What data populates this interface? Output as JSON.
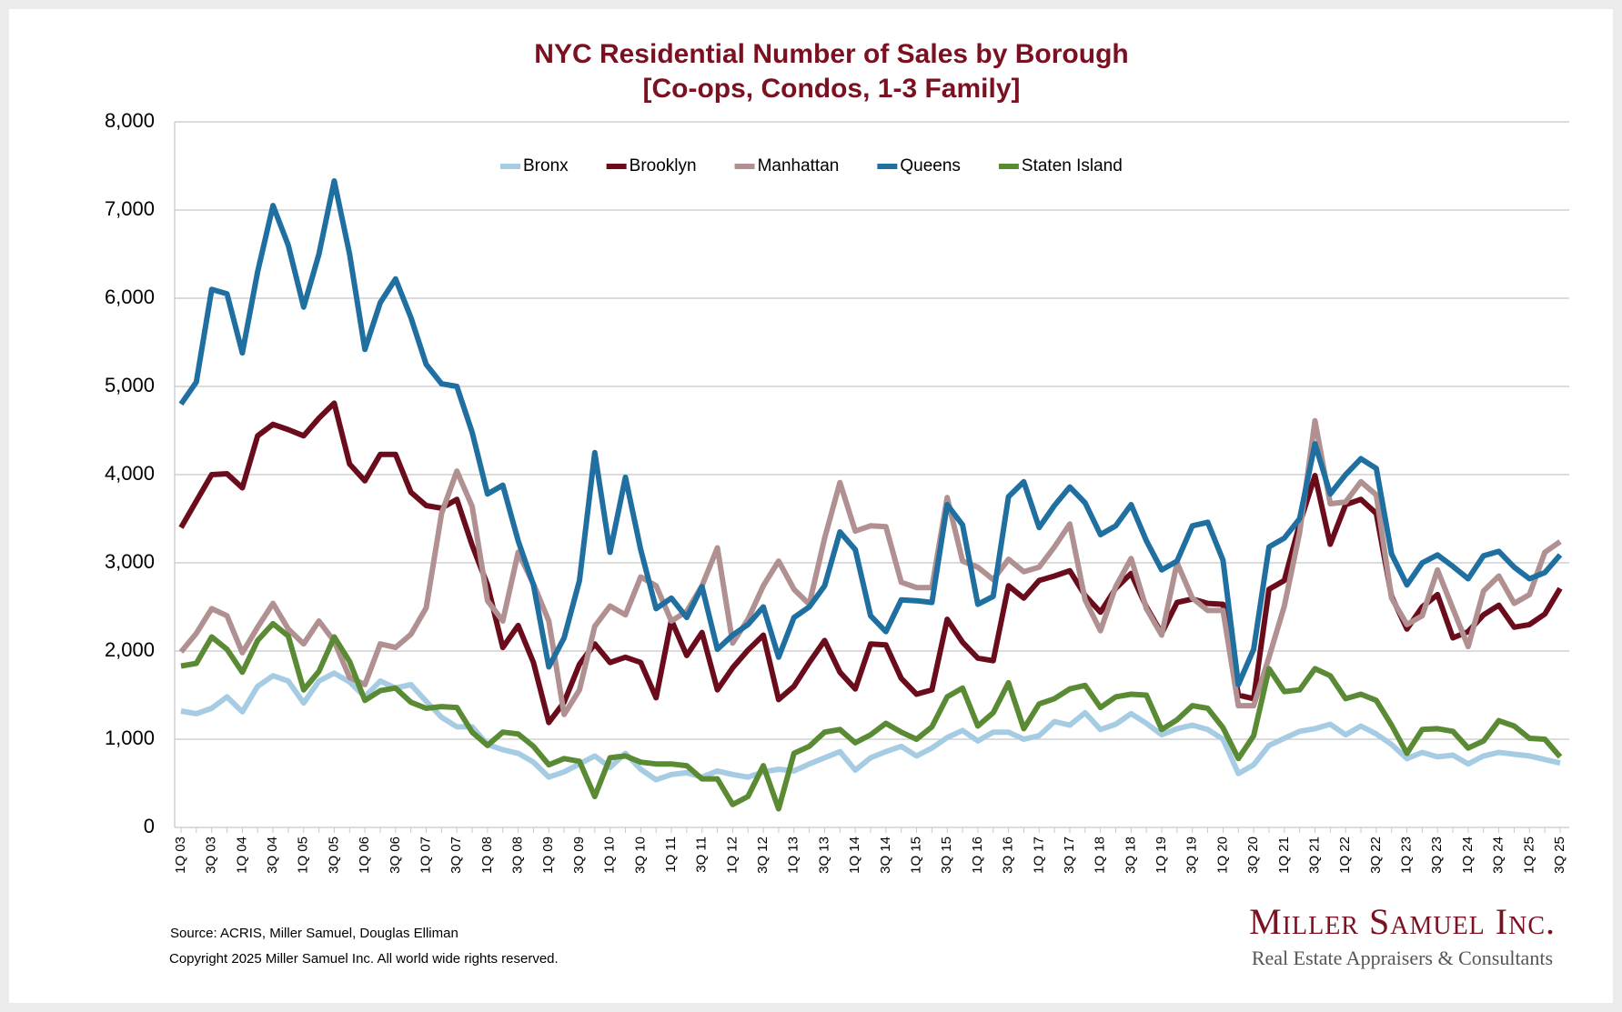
{
  "chart_data": {
    "type": "line",
    "title": "NYC Residential Number of Sales by Borough",
    "subtitle": "[Co-ops, Condos, 1-3 Family]",
    "categories": [
      "1Q 03",
      null,
      "3Q 03",
      null,
      "1Q 04",
      null,
      "3Q 04",
      null,
      "1Q 05",
      null,
      "3Q 05",
      null,
      "1Q 06",
      null,
      "3Q 06",
      null,
      "1Q 07",
      null,
      "3Q 07",
      null,
      "1Q 08",
      null,
      "3Q 08",
      null,
      "1Q 09",
      null,
      "3Q 09",
      null,
      "1Q 10",
      null,
      "3Q 10",
      null,
      "1Q 11",
      null,
      "3Q 11",
      null,
      "1Q 12",
      null,
      "3Q 12",
      null,
      "1Q 13",
      null,
      "3Q 13",
      null,
      "1Q 14",
      null,
      "3Q 14",
      null,
      "1Q 15",
      null,
      "3Q 15",
      null,
      "1Q 16",
      null,
      "3Q 16",
      null,
      "1Q 17",
      null,
      "3Q 17",
      null,
      "1Q 18",
      null,
      "3Q 18",
      null,
      "1Q 19",
      null,
      "3Q 19",
      null,
      "1Q 20",
      null,
      "3Q 20",
      null,
      "1Q 21",
      null,
      "3Q 21",
      null,
      "1Q 22",
      null,
      "3Q 22",
      null,
      "1Q 23",
      null,
      "3Q 23",
      null,
      "1Q 24",
      null,
      "3Q 24",
      null,
      "1Q 25",
      null,
      "3Q 25"
    ],
    "series": [
      {
        "name": "Bronx",
        "color": "#a6cce3",
        "values": [
          1320,
          1290,
          1350,
          1480,
          1310,
          1600,
          1720,
          1660,
          1410,
          1660,
          1750,
          1650,
          1480,
          1660,
          1580,
          1620,
          1430,
          1250,
          1140,
          1140,
          940,
          880,
          840,
          740,
          570,
          630,
          720,
          810,
          680,
          840,
          660,
          540,
          600,
          620,
          570,
          640,
          600,
          570,
          630,
          660,
          640,
          720,
          790,
          860,
          650,
          790,
          860,
          920,
          810,
          900,
          1020,
          1100,
          980,
          1080,
          1080,
          1000,
          1040,
          1200,
          1160,
          1300,
          1110,
          1170,
          1290,
          1180,
          1050,
          1120,
          1160,
          1110,
          1000,
          610,
          710,
          930,
          1010,
          1090,
          1120,
          1170,
          1050,
          1150,
          1060,
          940,
          780,
          850,
          800,
          820,
          720,
          810,
          850,
          830,
          810,
          770,
          730
        ]
      },
      {
        "name": "Brooklyn",
        "color": "#6b0c1c",
        "values": [
          3400,
          3700,
          4000,
          4010,
          3850,
          4440,
          4570,
          4510,
          4440,
          4640,
          4810,
          4120,
          3930,
          4230,
          4230,
          3800,
          3650,
          3620,
          3720,
          3200,
          2750,
          2040,
          2290,
          1870,
          1190,
          1420,
          1850,
          2080,
          1870,
          1930,
          1870,
          1470,
          2350,
          1950,
          2210,
          1560,
          1810,
          2010,
          2180,
          1450,
          1600,
          1870,
          2120,
          1760,
          1570,
          2080,
          2070,
          1690,
          1510,
          1560,
          2360,
          2100,
          1920,
          1890,
          2740,
          2600,
          2800,
          2850,
          2910,
          2630,
          2440,
          2710,
          2880,
          2500,
          2200,
          2550,
          2590,
          2540,
          2530,
          1500,
          1460,
          2700,
          2800,
          3440,
          3990,
          3210,
          3660,
          3720,
          3560,
          2620,
          2250,
          2500,
          2640,
          2150,
          2220,
          2410,
          2520,
          2270,
          2300,
          2420,
          2710
        ]
      },
      {
        "name": "Manhattan",
        "color": "#b09090",
        "values": [
          1990,
          2200,
          2480,
          2400,
          1980,
          2270,
          2540,
          2250,
          2080,
          2340,
          2110,
          1700,
          1620,
          2080,
          2040,
          2190,
          2490,
          3560,
          4040,
          3640,
          2570,
          2340,
          3120,
          2760,
          2340,
          1280,
          1560,
          2280,
          2510,
          2410,
          2840,
          2740,
          2340,
          2450,
          2740,
          3170,
          2090,
          2360,
          2740,
          3020,
          2700,
          2530,
          3280,
          3910,
          3360,
          3420,
          3410,
          2780,
          2720,
          2720,
          3740,
          3020,
          2950,
          2810,
          3040,
          2900,
          2950,
          3180,
          3440,
          2580,
          2230,
          2730,
          3050,
          2480,
          2180,
          3000,
          2600,
          2460,
          2460,
          1380,
          1380,
          1930,
          2510,
          3340,
          4610,
          3670,
          3690,
          3920,
          3770,
          2600,
          2300,
          2400,
          2920,
          2480,
          2050,
          2680,
          2850,
          2540,
          2640,
          3120,
          3240
        ]
      },
      {
        "name": "Queens",
        "color": "#1f6fa0",
        "values": [
          4800,
          5050,
          6100,
          6050,
          5380,
          6300,
          7050,
          6600,
          5900,
          6500,
          7330,
          6500,
          5420,
          5950,
          6220,
          5780,
          5250,
          5030,
          5000,
          4480,
          3780,
          3880,
          3250,
          2750,
          1820,
          2150,
          2800,
          4250,
          3120,
          3970,
          3150,
          2480,
          2600,
          2380,
          2730,
          2020,
          2180,
          2300,
          2500,
          1930,
          2380,
          2500,
          2740,
          3350,
          3150,
          2400,
          2220,
          2580,
          2570,
          2550,
          3660,
          3430,
          2530,
          2620,
          3750,
          3920,
          3400,
          3650,
          3860,
          3680,
          3320,
          3420,
          3660,
          3250,
          2920,
          3020,
          3420,
          3460,
          3030,
          1620,
          2020,
          3180,
          3280,
          3500,
          4350,
          3780,
          4000,
          4180,
          4070,
          3100,
          2750,
          3000,
          3090,
          2960,
          2820,
          3080,
          3130,
          2950,
          2820,
          2890,
          3090
        ]
      },
      {
        "name": "Staten Island",
        "color": "#5a8a34",
        "values": [
          1830,
          1860,
          2160,
          2020,
          1760,
          2120,
          2310,
          2170,
          1560,
          1770,
          2160,
          1880,
          1440,
          1550,
          1580,
          1420,
          1350,
          1370,
          1360,
          1080,
          930,
          1080,
          1060,
          920,
          710,
          780,
          750,
          350,
          790,
          810,
          740,
          720,
          720,
          700,
          550,
          550,
          260,
          350,
          700,
          210,
          840,
          920,
          1080,
          1110,
          960,
          1050,
          1180,
          1080,
          1000,
          1140,
          1480,
          1580,
          1150,
          1300,
          1640,
          1120,
          1400,
          1460,
          1570,
          1610,
          1360,
          1480,
          1510,
          1500,
          1110,
          1220,
          1380,
          1350,
          1130,
          780,
          1040,
          1800,
          1540,
          1560,
          1800,
          1720,
          1460,
          1510,
          1440,
          1160,
          840,
          1110,
          1120,
          1090,
          900,
          980,
          1210,
          1150,
          1010,
          1000,
          800
        ]
      }
    ],
    "ylim": [
      0,
      8000
    ],
    "yticks": [
      0,
      {
        "value": 1000,
        "label": "1,000"
      },
      {
        "value": 2000,
        "label": "2,000"
      },
      {
        "value": 3000,
        "label": "3,000"
      },
      {
        "value": 4000,
        "label": "4,000"
      },
      {
        "value": 5000,
        "label": "5,000"
      },
      {
        "value": 6000,
        "label": "6,000"
      },
      {
        "value": 7000,
        "label": "7,000"
      },
      {
        "value": 8000,
        "label": "8,000"
      }
    ],
    "grid": true,
    "legend": "top"
  },
  "footer": {
    "source": "Source: ACRIS, Miller Samuel, Douglas Elliman",
    "copyright": "Copyright 2025 Miller Samuel Inc.  All world wide rights reserved.",
    "logo": "Miller Samuel Inc.",
    "tagline": "Real Estate Appraisers & Consultants"
  }
}
